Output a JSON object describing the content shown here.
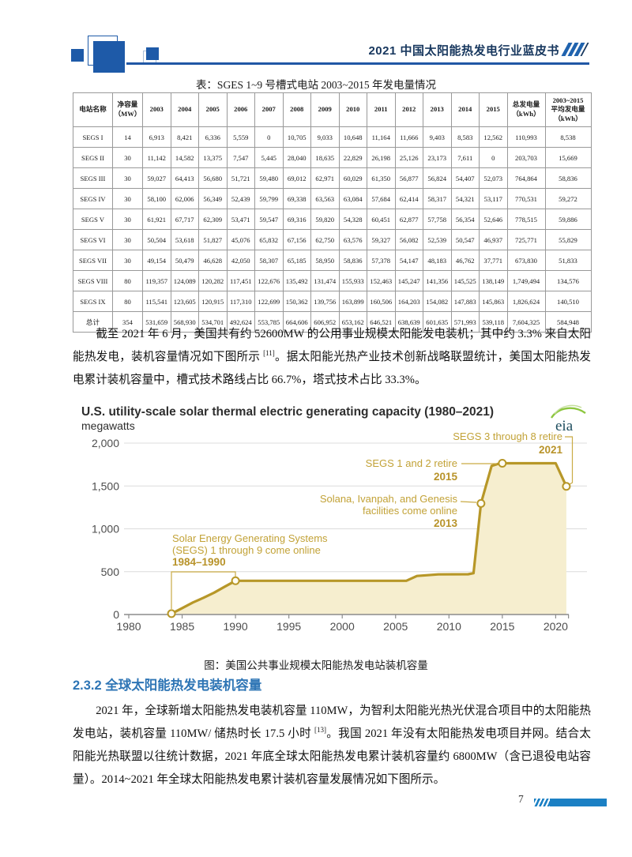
{
  "header": {
    "title": "2021 中国太阳能热发电行业蓝皮书"
  },
  "table": {
    "title": "表：SGES 1~9 号槽式电站 2003~2015 年发电量情况",
    "columns": [
      "电站名称",
      "净容量\n（MW）",
      "2003",
      "2004",
      "2005",
      "2006",
      "2007",
      "2008",
      "2009",
      "2010",
      "2011",
      "2012",
      "2013",
      "2014",
      "2015",
      "总发电量\n（kWh）",
      "2003~2015\n平均发电量\n（kWh）"
    ],
    "rows": [
      [
        "SEGS I",
        "14",
        "6,913",
        "8,421",
        "6,336",
        "5,559",
        "0",
        "10,705",
        "9,033",
        "10,648",
        "11,164",
        "11,666",
        "9,403",
        "8,583",
        "12,562",
        "110,993",
        "8,538"
      ],
      [
        "SEGS II",
        "30",
        "11,142",
        "14,582",
        "13,375",
        "7,547",
        "5,445",
        "28,040",
        "18,635",
        "22,829",
        "26,198",
        "25,126",
        "23,173",
        "7,611",
        "0",
        "203,703",
        "15,669"
      ],
      [
        "SEGS III",
        "30",
        "59,027",
        "64,413",
        "56,680",
        "51,721",
        "59,480",
        "69,012",
        "62,971",
        "60,029",
        "61,350",
        "56,877",
        "56,824",
        "54,407",
        "52,073",
        "764,864",
        "58,836"
      ],
      [
        "SEGS IV",
        "30",
        "58,100",
        "62,006",
        "56,349",
        "52,439",
        "59,799",
        "69,338",
        "63,563",
        "63,084",
        "57,684",
        "62,414",
        "58,317",
        "54,321",
        "53,117",
        "770,531",
        "59,272"
      ],
      [
        "SEGS V",
        "30",
        "61,921",
        "67,717",
        "62,309",
        "53,471",
        "59,547",
        "69,316",
        "59,820",
        "54,328",
        "60,451",
        "62,877",
        "57,758",
        "56,354",
        "52,646",
        "778,515",
        "59,886"
      ],
      [
        "SEGS VI",
        "30",
        "50,504",
        "53,618",
        "51,827",
        "45,076",
        "65,832",
        "67,156",
        "62,750",
        "63,576",
        "59,327",
        "56,082",
        "52,539",
        "50,547",
        "46,937",
        "725,771",
        "55,829"
      ],
      [
        "SEGS VII",
        "30",
        "49,154",
        "50,479",
        "46,628",
        "42,050",
        "58,307",
        "65,185",
        "58,950",
        "58,836",
        "57,378",
        "54,147",
        "48,183",
        "46,762",
        "37,771",
        "673,830",
        "51,833"
      ],
      [
        "SEGS VIII",
        "80",
        "119,357",
        "124,089",
        "120,282",
        "117,451",
        "122,676",
        "135,492",
        "131,474",
        "155,933",
        "152,463",
        "145,247",
        "141,356",
        "145,525",
        "138,149",
        "1,749,494",
        "134,576"
      ],
      [
        "SEGS IX",
        "80",
        "115,541",
        "123,605",
        "120,915",
        "117,310",
        "122,699",
        "150,362",
        "139,756",
        "163,899",
        "160,506",
        "164,203",
        "154,082",
        "147,883",
        "145,863",
        "1,826,624",
        "140,510"
      ],
      [
        "总计",
        "354",
        "531,659",
        "568,930",
        "534,701",
        "492,624",
        "553,785",
        "664,606",
        "606,952",
        "653,162",
        "646,521",
        "638,639",
        "601,635",
        "571,993",
        "539,118",
        "7,604,325",
        "584,948"
      ]
    ]
  },
  "paragraphs": {
    "p1": {
      "seg1": "截至 2021 年 6 月，美国共有约 52600MW 的公用事业规模太阳能发电装机；其中约 3.3% 来自太阳能热发电，装机容量情况如下图所示 ",
      "sup": "[11]",
      "seg2": "。据太阳能光热产业技术创新战略联盟统计，美国太阳能热发电累计装机容量中，槽式技术路线占比 66.7%，塔式技术占比 33.3%。"
    },
    "p2": {
      "seg1": "2021 年，全球新增太阳能热发电装机容量 110MW，为智利太阳能光热光伏混合项目中的太阳能热发电站，装机容量 110MW/ 储热时长 17.5 小时 ",
      "sup": "[13]",
      "seg2": "。我国 2021 年没有太阳能热发电项目并网。结合太阳能光热联盟以往统计数据，2021 年底全球太阳能热发电累计装机容量约 6800MW（含已退役电站容量）。2014~2021 年全球太阳能热发电累计装机容量发展情况如下图所示。"
    }
  },
  "chart_data": {
    "type": "area",
    "title": "U.S. utility-scale solar thermal electric generating capacity (1980–2021)",
    "ylabel_unit": "megawatts",
    "logo_text": "eia",
    "x": [
      1984,
      1985,
      1986,
      1987,
      1988,
      1989,
      1990,
      2006,
      2007,
      2009,
      2011.8,
      2012.3,
      2013,
      2014,
      2014.8,
      2020,
      2021
    ],
    "y": [
      10,
      75,
      140,
      195,
      255,
      325,
      394,
      394,
      450,
      468,
      470,
      482,
      1296,
      1735,
      1765,
      1765,
      1495
    ],
    "markers": [
      {
        "x": 1984,
        "y": 10
      },
      {
        "x": 1990,
        "y": 394
      },
      {
        "x": 2013,
        "y": 1296
      },
      {
        "x": 2015,
        "y": 1765
      },
      {
        "x": 2021,
        "y": 1495
      }
    ],
    "xlim": [
      1980,
      2021.5
    ],
    "ylim": [
      0,
      2000
    ],
    "yticks": [
      0,
      500,
      1000,
      1500,
      2000
    ],
    "ytick_labels": [
      "0",
      "500",
      "1,000",
      "1,500",
      "2,000"
    ],
    "xticks": [
      1980,
      1985,
      1990,
      1995,
      2000,
      2005,
      2010,
      2015,
      2020
    ],
    "grid": true,
    "annotations": [
      {
        "lines": [
          "Solar Energy Generating Systems",
          "(SEGS) 1 through 9 come online"
        ],
        "year_label": "1984–1990"
      },
      {
        "lines": [
          "SEGS 1 and 2 retire"
        ],
        "year_label": "2015"
      },
      {
        "lines": [
          "Solana, Ivanpah, and Genesis",
          "facilities come online"
        ],
        "year_label": "2013"
      },
      {
        "lines": [
          "SEGS 3 through 8 retire"
        ],
        "year_label": "2021"
      }
    ],
    "line_color": "#b79728",
    "fill_color": "#f6eecf",
    "annotation_color": "#c2a237"
  },
  "figure_caption": "图：美国公共事业规模太阳能热发电站装机容量",
  "section": {
    "heading": "2.3.2 全球太阳能热发电装机容量"
  },
  "footer": {
    "page_number": "7"
  }
}
